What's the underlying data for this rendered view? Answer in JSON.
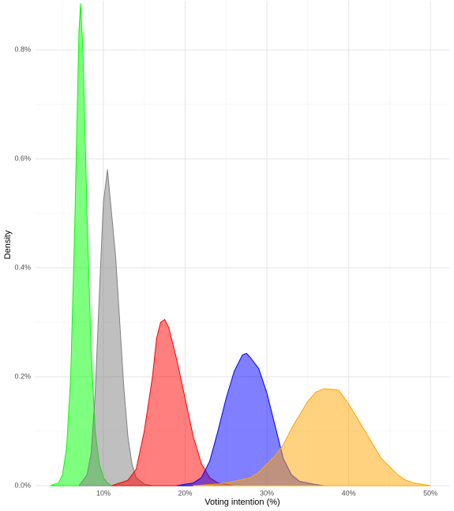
{
  "chart_data": {
    "type": "density",
    "x_label": "Voting intention (%)",
    "y_label": "Density",
    "xlim": [
      1.7,
      52.4
    ],
    "ylim": [
      0,
      0.89
    ],
    "xticks": [
      {
        "value": 10,
        "label": "10%"
      },
      {
        "value": 20,
        "label": "20%"
      },
      {
        "value": 30,
        "label": "30%"
      },
      {
        "value": 40,
        "label": "40%"
      },
      {
        "value": 50,
        "label": "50%"
      }
    ],
    "yticks": [
      {
        "value": 0,
        "label": "0.0%"
      },
      {
        "value": 0.2,
        "label": "0.2%"
      },
      {
        "value": 0.4,
        "label": "0.4%"
      },
      {
        "value": 0.6,
        "label": "0.6%"
      },
      {
        "value": 0.8,
        "label": "0.8%"
      }
    ],
    "xminor": [
      5,
      15,
      25,
      35,
      45
    ],
    "yminor": [
      0.1,
      0.3,
      0.5,
      0.7
    ],
    "grid": true,
    "series": [
      {
        "color": "#00ff00",
        "x": [
          3.5,
          4.5,
          5.0,
          5.5,
          6.0,
          6.5,
          7.0,
          7.2,
          7.5,
          8.0,
          8.5,
          9.0,
          9.5,
          10.0,
          10.5,
          11
        ],
        "values": [
          0,
          0.005,
          0.02,
          0.07,
          0.2,
          0.48,
          0.83,
          0.885,
          0.8,
          0.5,
          0.25,
          0.1,
          0.04,
          0.015,
          0.005,
          0
        ]
      },
      {
        "color": "#808080",
        "x": [
          7,
          8,
          8.5,
          9,
          9.5,
          10,
          10.5,
          11,
          11.5,
          12,
          12.5,
          13,
          13.5,
          14,
          15,
          16
        ],
        "values": [
          0,
          0.02,
          0.06,
          0.17,
          0.35,
          0.52,
          0.58,
          0.5,
          0.42,
          0.3,
          0.18,
          0.09,
          0.04,
          0.015,
          0.003,
          0
        ]
      },
      {
        "color": "#ff0000",
        "x": [
          11,
          13,
          14,
          15,
          16,
          16.5,
          17,
          17.5,
          18,
          19,
          20,
          21,
          22,
          23,
          24,
          26
        ],
        "values": [
          0,
          0.01,
          0.03,
          0.1,
          0.2,
          0.27,
          0.3,
          0.305,
          0.29,
          0.23,
          0.16,
          0.09,
          0.04,
          0.015,
          0.005,
          0
        ]
      },
      {
        "color": "#0000ff",
        "x": [
          19,
          21,
          22,
          23,
          24,
          25,
          26,
          27,
          27.5,
          28,
          29,
          30,
          31,
          32,
          33,
          34,
          36,
          37
        ],
        "values": [
          0,
          0.005,
          0.015,
          0.045,
          0.1,
          0.16,
          0.21,
          0.24,
          0.243,
          0.235,
          0.215,
          0.17,
          0.11,
          0.05,
          0.02,
          0.008,
          0.002,
          0
        ]
      },
      {
        "color": "#ffa500",
        "x": [
          21,
          24,
          26,
          28,
          29,
          30,
          31,
          32,
          33,
          34,
          35,
          36,
          37,
          38,
          38.8,
          40,
          41,
          42,
          43,
          44,
          45,
          46,
          47,
          48,
          50
        ],
        "values": [
          0,
          0.003,
          0.008,
          0.015,
          0.025,
          0.04,
          0.055,
          0.075,
          0.105,
          0.13,
          0.155,
          0.172,
          0.178,
          0.177,
          0.175,
          0.15,
          0.125,
          0.1,
          0.075,
          0.05,
          0.035,
          0.02,
          0.01,
          0.005,
          0
        ]
      }
    ]
  }
}
